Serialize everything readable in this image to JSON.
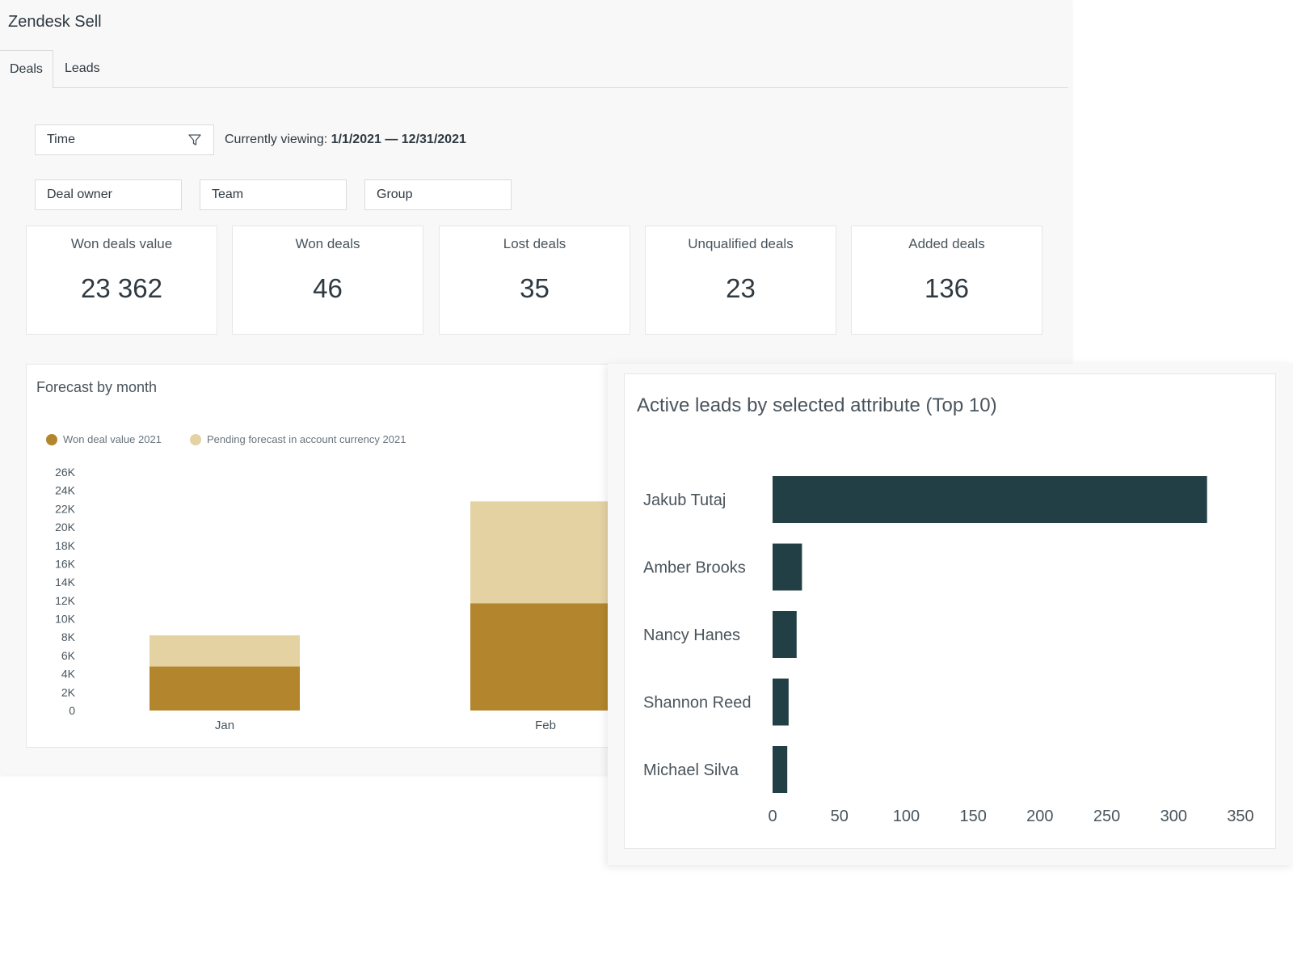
{
  "app": {
    "title": "Zendesk Sell"
  },
  "tabs": [
    {
      "label": "Deals",
      "active": true
    },
    {
      "label": "Leads",
      "active": false
    }
  ],
  "filters": {
    "time": {
      "label": "Time",
      "icon": "filter-icon"
    },
    "currently_viewing_label": "Currently viewing:",
    "currently_viewing_range": "1/1/2021 — 12/31/2021",
    "deal_owner": "Deal owner",
    "team": "Team",
    "group": "Group"
  },
  "kpis": [
    {
      "label": "Won deals value",
      "value": "23 362"
    },
    {
      "label": "Won deals",
      "value": "46"
    },
    {
      "label": "Lost deals",
      "value": "35"
    },
    {
      "label": "Unqualified deals",
      "value": "23"
    },
    {
      "label": "Added deals",
      "value": "136"
    }
  ],
  "colors": {
    "won": "#b3862e",
    "pending": "#e5d2a3",
    "leads_bar": "#213f44",
    "axis_text": "#49545c"
  },
  "chart_data": [
    {
      "type": "bar",
      "stacked": true,
      "title": "Forecast by month",
      "categories": [
        "Jan",
        "Feb"
      ],
      "series": [
        {
          "name": "Won deal value 2021",
          "values": [
            4800,
            11700
          ]
        },
        {
          "name": "Pending forecast in account currency 2021",
          "values": [
            3400,
            11100
          ]
        }
      ],
      "yticks": [
        "0",
        "2K",
        "4K",
        "6K",
        "8K",
        "10K",
        "12K",
        "14K",
        "16K",
        "18K",
        "20K",
        "22K",
        "24K",
        "26K"
      ],
      "ylim": [
        0,
        26000
      ],
      "legend": "top-left",
      "grid": false
    },
    {
      "type": "bar",
      "orientation": "horizontal",
      "title": "Active leads by selected attribute (Top 10)",
      "categories": [
        "Jakub Tutaj",
        "Amber Brooks",
        "Nancy Hanes",
        "Shannon Reed",
        "Michael Silva"
      ],
      "values": [
        325,
        22,
        18,
        12,
        11
      ],
      "xticks": [
        "0",
        "50",
        "100",
        "150",
        "200",
        "250",
        "300",
        "350"
      ],
      "xlim": [
        0,
        350
      ],
      "grid": false
    }
  ]
}
